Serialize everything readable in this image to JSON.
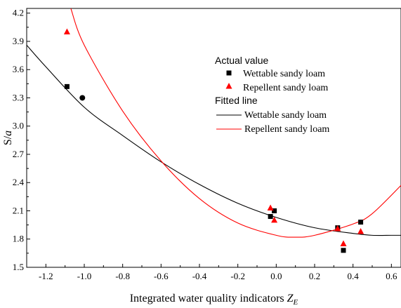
{
  "chart_data": {
    "type": "scatter",
    "xlabel": "Integrated water quality indicators ",
    "xlabel_symbol": "Z",
    "xlabel_subscript": "E",
    "ylabel": "S/",
    "ylabel_symbol": "a",
    "xlim": [
      -1.3,
      0.65
    ],
    "ylim": [
      1.5,
      4.25
    ],
    "xticks": [
      "-1.2",
      "-1.0",
      "-0.8",
      "-0.6",
      "-0.4",
      "-0.2",
      "0.0",
      "0.2",
      "0.4",
      "0.6"
    ],
    "xtick_values": [
      -1.2,
      -1.0,
      -0.8,
      -0.6,
      -0.4,
      -0.2,
      0.0,
      0.2,
      0.4,
      0.6
    ],
    "yticks": [
      "1.5",
      "1.8",
      "2.1",
      "2.4",
      "2.7",
      "3.0",
      "3.3",
      "3.6",
      "3.9",
      "4.2"
    ],
    "ytick_values": [
      1.5,
      1.8,
      2.1,
      2.4,
      2.7,
      3.0,
      3.3,
      3.6,
      3.9,
      4.2
    ],
    "grid": false,
    "legend_position": "top-right",
    "legend": {
      "actual_heading": "Actual value",
      "fitted_heading": "Fitted line"
    },
    "series": [
      {
        "name": "Wettable sandy loam",
        "kind": "points",
        "marker": "square",
        "color": "#000000",
        "x": [
          -1.09,
          -0.03,
          -0.01,
          0.32,
          0.35,
          0.44
        ],
        "y": [
          3.42,
          2.04,
          2.1,
          1.92,
          1.68,
          1.98
        ]
      },
      {
        "name": "",
        "kind": "points",
        "marker": "circle",
        "color": "#000000",
        "x": [
          -1.01
        ],
        "y": [
          3.3
        ]
      },
      {
        "name": "Repellent sandy loam",
        "kind": "points",
        "marker": "triangle",
        "color": "#ff0000",
        "x": [
          -1.09,
          -0.03,
          -0.01,
          0.32,
          0.35,
          0.44
        ],
        "y": [
          4.0,
          2.13,
          2.0,
          1.91,
          1.75,
          1.88
        ]
      },
      {
        "name": "Wettable sandy loam",
        "kind": "fit",
        "color": "#000000",
        "x": [
          -1.3,
          -1.2,
          -1.0,
          -0.8,
          -0.6,
          -0.4,
          -0.2,
          0.0,
          0.2,
          0.4,
          0.5,
          0.6,
          0.65
        ],
        "y": [
          3.86,
          3.63,
          3.2,
          2.9,
          2.62,
          2.38,
          2.18,
          2.03,
          1.92,
          1.86,
          1.84,
          1.84,
          1.84
        ]
      },
      {
        "name": "Repellent sandy loam",
        "kind": "fit",
        "color": "#ff0000",
        "x": [
          -1.07,
          -1.0,
          -0.8,
          -0.6,
          -0.4,
          -0.2,
          0.0,
          0.1,
          0.2,
          0.4,
          0.5,
          0.65
        ],
        "y": [
          4.25,
          3.86,
          3.16,
          2.63,
          2.23,
          1.97,
          1.84,
          1.82,
          1.84,
          1.96,
          2.07,
          2.37
        ]
      }
    ]
  }
}
